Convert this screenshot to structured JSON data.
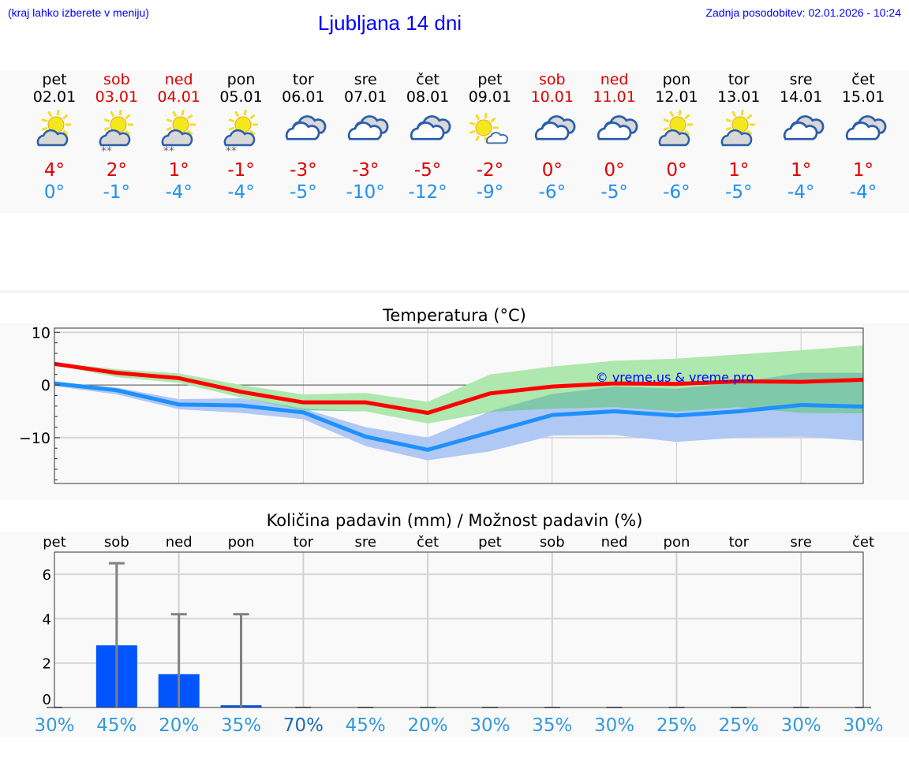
{
  "header": {
    "hint": "(kraj lahko izberete v meniju)",
    "title": "Ljubljana 14 dni",
    "updated": "Zadnja posodobitev: 02.01.2026 - 10:24"
  },
  "days": [
    {
      "name": "pet",
      "date": "02.01",
      "weekend": false,
      "icon": "partly-cloudy-icon",
      "max": "4°",
      "min": "0°"
    },
    {
      "name": "sob",
      "date": "03.01",
      "weekend": true,
      "icon": "partly-cloudy-snow-icon",
      "max": "2°",
      "min": "-1°"
    },
    {
      "name": "ned",
      "date": "04.01",
      "weekend": true,
      "icon": "partly-cloudy-snow-icon",
      "max": "1°",
      "min": "-4°"
    },
    {
      "name": "pon",
      "date": "05.01",
      "weekend": false,
      "icon": "partly-cloudy-snow-icon",
      "max": "-1°",
      "min": "-4°"
    },
    {
      "name": "tor",
      "date": "06.01",
      "weekend": false,
      "icon": "overcast-icon",
      "max": "-3°",
      "min": "-5°"
    },
    {
      "name": "sre",
      "date": "07.01",
      "weekend": false,
      "icon": "overcast-icon",
      "max": "-3°",
      "min": "-10°"
    },
    {
      "name": "čet",
      "date": "08.01",
      "weekend": false,
      "icon": "overcast-icon",
      "max": "-5°",
      "min": "-12°"
    },
    {
      "name": "pet",
      "date": "09.01",
      "weekend": false,
      "icon": "mostly-sunny-icon",
      "max": "-2°",
      "min": "-9°"
    },
    {
      "name": "sob",
      "date": "10.01",
      "weekend": true,
      "icon": "overcast-icon",
      "max": "0°",
      "min": "-6°"
    },
    {
      "name": "ned",
      "date": "11.01",
      "weekend": true,
      "icon": "overcast-icon",
      "max": "0°",
      "min": "-5°"
    },
    {
      "name": "pon",
      "date": "12.01",
      "weekend": false,
      "icon": "partly-cloudy-icon",
      "max": "0°",
      "min": "-6°"
    },
    {
      "name": "tor",
      "date": "13.01",
      "weekend": false,
      "icon": "partly-cloudy-icon",
      "max": "1°",
      "min": "-5°"
    },
    {
      "name": "sre",
      "date": "14.01",
      "weekend": false,
      "icon": "overcast-icon",
      "max": "1°",
      "min": "-4°"
    },
    {
      "name": "čet",
      "date": "15.01",
      "weekend": false,
      "icon": "overcast-icon",
      "max": "1°",
      "min": "-4°"
    }
  ],
  "colors": {
    "max": "#dd0000",
    "min": "#2090f0",
    "max_line": "#ff0000",
    "min_line": "#1e90ff",
    "max_band": "#aee8ae",
    "min_band": "#b0c8f4",
    "overlap": "#7fc8aa",
    "bar": "#0055ff",
    "errbar": "#808080",
    "pct": "#3399dd",
    "pct_high": "#1a6abf"
  },
  "chart_data": [
    {
      "type": "line",
      "title": "Temperatura (°C)",
      "ylim": [
        -18.7,
        10.8
      ],
      "yticks": [
        10,
        0,
        -10
      ],
      "ytick_labels": [
        "10",
        "0",
        "−10"
      ],
      "grid": true,
      "watermark": "© vreme.us & vreme.pro",
      "x": [
        "02.01",
        "03.01",
        "04.01",
        "05.01",
        "06.01",
        "07.01",
        "08.01",
        "09.01",
        "10.01",
        "11.01",
        "12.01",
        "13.01",
        "14.01",
        "15.01"
      ],
      "series": [
        {
          "role": "max",
          "values": [
            4,
            2.3,
            1.3,
            -1.3,
            -3.3,
            -3.3,
            -5.3,
            -1.6,
            -0.3,
            0.3,
            0.2,
            0.7,
            0.6,
            1.0
          ],
          "band_high": [
            4.3,
            3.0,
            2.2,
            0,
            -1.8,
            -1.5,
            -3.2,
            2.0,
            3.5,
            4.6,
            5.0,
            5.8,
            6.6,
            7.5
          ],
          "band_low": [
            3.8,
            1.5,
            0.4,
            -2.4,
            -4.8,
            -5.0,
            -7.3,
            -5.1,
            -4.5,
            -4.2,
            -5.0,
            -4.2,
            -5.3,
            -5.4
          ]
        },
        {
          "role": "min",
          "values": [
            0.3,
            -1.0,
            -3.7,
            -3.9,
            -5.2,
            -9.8,
            -12.3,
            -9.0,
            -5.7,
            -5.0,
            -5.8,
            -5.0,
            -3.8,
            -4.1
          ],
          "band_high": [
            0.6,
            -0.5,
            -2.7,
            -2.5,
            -4.5,
            -8.0,
            -10.0,
            -5.0,
            -1.7,
            -0.3,
            -0.7,
            0.5,
            2.3,
            2.3
          ],
          "band_low": [
            -0.2,
            -1.8,
            -4.6,
            -5.3,
            -6.5,
            -11.6,
            -14.3,
            -12.6,
            -9.6,
            -9.5,
            -10.8,
            -10.0,
            -9.8,
            -10.6
          ]
        }
      ]
    },
    {
      "type": "bar",
      "title": "Količina padavin (mm) / Možnost padavin (%)",
      "ylim": [
        0,
        7
      ],
      "yticks": [
        0,
        2,
        4,
        6
      ],
      "grid": true,
      "categories": [
        "pet",
        "sob",
        "ned",
        "pon",
        "tor",
        "sre",
        "čet",
        "pet",
        "sob",
        "ned",
        "pon",
        "tor",
        "sre",
        "čet"
      ],
      "values": [
        0,
        2.8,
        1.5,
        0.1,
        0,
        0,
        0,
        0,
        0,
        0,
        0,
        0,
        0,
        0
      ],
      "error_high": [
        0,
        6.5,
        4.2,
        4.2,
        0,
        0,
        0,
        0,
        0,
        0,
        0,
        0,
        0,
        0
      ],
      "probability": [
        "30%",
        "45%",
        "20%",
        "35%",
        "70%",
        "45%",
        "20%",
        "30%",
        "35%",
        "30%",
        "25%",
        "25%",
        "30%",
        "30%"
      ]
    }
  ]
}
